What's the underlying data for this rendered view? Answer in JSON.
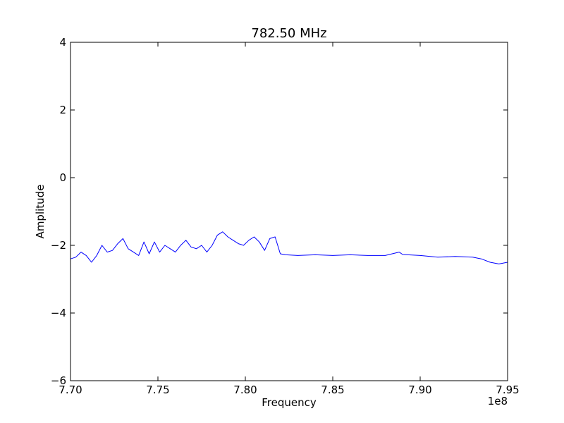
{
  "chart_data": {
    "type": "line",
    "title": "782.50 MHz",
    "xlabel": "Frequency",
    "ylabel": "Amplitude",
    "x_offset_text": "1e8",
    "xlim": [
      770000000,
      795000000
    ],
    "ylim": [
      -6,
      4
    ],
    "x_ticks": [
      770000000,
      775000000,
      780000000,
      785000000,
      790000000,
      795000000
    ],
    "x_tick_labels": [
      "7.70",
      "7.75",
      "7.80",
      "7.85",
      "7.90",
      "7.95"
    ],
    "y_ticks": [
      4,
      2,
      0,
      -2,
      -4,
      -6
    ],
    "y_tick_labels": [
      "4",
      "2",
      "0",
      "−2",
      "−4",
      "−6"
    ],
    "grid": false,
    "line_color": "#0000ff",
    "series": [
      {
        "x": [
          770000000,
          770300000,
          770600000,
          770900000,
          771200000,
          771500000,
          771800000,
          772100000,
          772400000,
          772700000,
          773000000,
          773300000,
          773600000,
          773900000,
          774200000,
          774500000,
          774800000,
          775100000,
          775400000,
          775700000,
          776000000,
          776300000,
          776600000,
          776900000,
          777200000,
          777500000,
          777800000,
          778100000,
          778400000,
          778700000,
          779000000,
          779300000,
          779600000,
          779900000,
          780200000,
          780500000,
          780800000,
          781100000,
          781400000,
          781700000,
          782000000,
          782300000,
          783000000,
          784000000,
          785000000,
          786000000,
          787000000,
          788000000,
          788800000,
          789000000,
          790000000,
          791000000,
          792000000,
          793000000,
          793500000,
          794000000,
          794500000,
          795000000
        ],
        "y": [
          -2.4,
          -2.35,
          -2.2,
          -2.3,
          -2.5,
          -2.3,
          -2.0,
          -2.2,
          -2.15,
          -1.95,
          -1.8,
          -2.1,
          -2.2,
          -2.3,
          -1.9,
          -2.25,
          -1.9,
          -2.2,
          -2.0,
          -2.1,
          -2.2,
          -2.0,
          -1.85,
          -2.05,
          -2.1,
          -2.0,
          -2.2,
          -2.0,
          -1.7,
          -1.6,
          -1.75,
          -1.85,
          -1.95,
          -2.0,
          -1.85,
          -1.75,
          -1.9,
          -2.15,
          -1.8,
          -1.75,
          -2.25,
          -2.28,
          -2.3,
          -2.28,
          -2.3,
          -2.28,
          -2.3,
          -2.3,
          -2.2,
          -2.27,
          -2.3,
          -2.35,
          -2.33,
          -2.35,
          -2.4,
          -2.5,
          -2.55,
          -2.5
        ]
      }
    ]
  }
}
